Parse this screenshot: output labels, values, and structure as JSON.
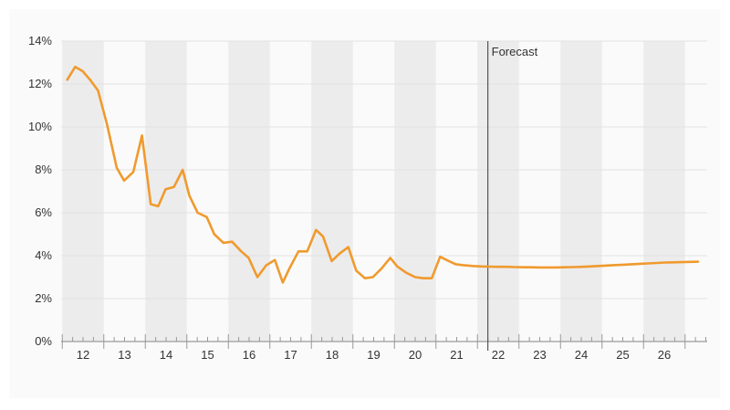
{
  "chart_data": {
    "type": "line",
    "title": "",
    "xlabel": "",
    "ylabel": "",
    "ylim": [
      0,
      14
    ],
    "xlim": [
      11.5,
      27.0
    ],
    "y_ticks": [
      {
        "value": 0,
        "label": "0%"
      },
      {
        "value": 2,
        "label": "2%"
      },
      {
        "value": 4,
        "label": "4%"
      },
      {
        "value": 6,
        "label": "6%"
      },
      {
        "value": 8,
        "label": "8%"
      },
      {
        "value": 10,
        "label": "10%"
      },
      {
        "value": 12,
        "label": "12%"
      },
      {
        "value": 14,
        "label": "14%"
      }
    ],
    "x_ticks": [
      {
        "value": 12,
        "label": "12"
      },
      {
        "value": 13,
        "label": "13"
      },
      {
        "value": 14,
        "label": "14"
      },
      {
        "value": 15,
        "label": "15"
      },
      {
        "value": 16,
        "label": "16"
      },
      {
        "value": 17,
        "label": "17"
      },
      {
        "value": 18,
        "label": "18"
      },
      {
        "value": 19,
        "label": "19"
      },
      {
        "value": 20,
        "label": "20"
      },
      {
        "value": 21,
        "label": "21"
      },
      {
        "value": 22,
        "label": "22"
      },
      {
        "value": 23,
        "label": "23"
      },
      {
        "value": 24,
        "label": "24"
      },
      {
        "value": 25,
        "label": "25"
      },
      {
        "value": 26,
        "label": "26"
      }
    ],
    "shaded_years": [
      12,
      14,
      16,
      18,
      20,
      22,
      24,
      26
    ],
    "grid": true,
    "minor_ticks_per_year": 4,
    "forecast_start": 21.75,
    "annotation": "Forecast",
    "series": [
      {
        "color": "#f09a2e",
        "x": [
          11.62,
          11.81,
          11.99,
          12.17,
          12.36,
          12.58,
          12.81,
          12.99,
          13.21,
          13.42,
          13.63,
          13.81,
          13.99,
          14.19,
          14.4,
          14.56,
          14.76,
          14.98,
          15.16,
          15.38,
          15.59,
          15.81,
          15.99,
          16.2,
          16.41,
          16.62,
          16.81,
          16.97,
          17.19,
          17.4,
          17.61,
          17.78,
          17.99,
          18.18,
          18.39,
          18.58,
          18.79,
          18.98,
          19.19,
          19.4,
          19.57,
          19.79,
          20.0,
          20.2,
          20.4,
          20.6,
          20.81,
          20.98,
          21.2,
          21.39,
          21.6,
          21.79,
          21.98,
          22.2,
          22.41,
          22.61,
          22.81,
          22.98,
          23.17,
          23.38,
          23.59,
          23.81,
          24.01,
          24.21,
          24.41,
          24.62,
          24.81,
          25.01,
          25.21,
          25.41,
          25.6,
          25.81,
          26.01,
          26.21,
          26.4,
          26.61,
          26.81
        ],
        "values": [
          12.2,
          12.8,
          12.6,
          12.2,
          11.7,
          10.1,
          8.1,
          7.5,
          7.9,
          9.6,
          6.4,
          6.3,
          7.1,
          7.2,
          8.0,
          6.8,
          6.0,
          5.8,
          5.0,
          4.6,
          4.65,
          4.2,
          3.9,
          3.0,
          3.55,
          3.8,
          2.75,
          3.4,
          4.2,
          4.2,
          5.2,
          4.9,
          3.75,
          4.1,
          4.4,
          3.3,
          2.95,
          3.0,
          3.4,
          3.9,
          3.5,
          3.2,
          3.0,
          2.95,
          2.95,
          3.95,
          3.75,
          3.6,
          3.55,
          3.52,
          3.5,
          3.49,
          3.48,
          3.48,
          3.47,
          3.46,
          3.46,
          3.45,
          3.45,
          3.45,
          3.46,
          3.47,
          3.48,
          3.5,
          3.52,
          3.54,
          3.56,
          3.58,
          3.6,
          3.62,
          3.64,
          3.66,
          3.68,
          3.69,
          3.7,
          3.71,
          3.72
        ]
      }
    ]
  }
}
